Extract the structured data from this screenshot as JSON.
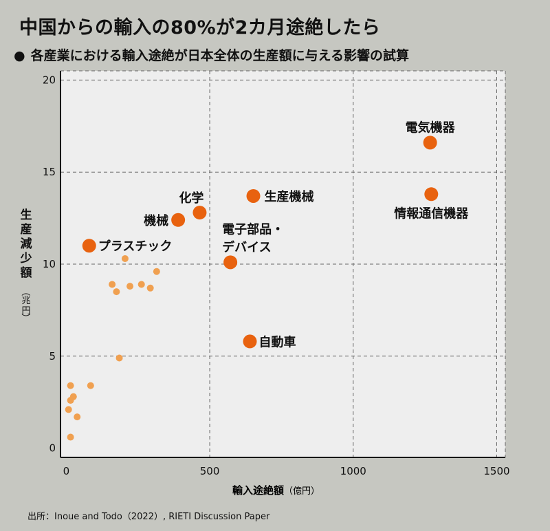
{
  "header": {
    "title": "中国からの輸入の80%が2カ月途絶したら",
    "bullet": "●",
    "subtitle": "各産業における輸入途絶が日本全体の生産額に与える影響の試算"
  },
  "footer": {
    "source": "出所：Inoue and Todo（2022）, RIETI Discussion Paper"
  },
  "colors": {
    "background": "#c6c7c1",
    "plot_background": "#eeeeee",
    "point_major": "#e8620f",
    "point_minor": "#f0a050"
  },
  "chart_data": {
    "type": "scatter",
    "xlabel": "輸入途絶額",
    "xlabel_unit": "（億円）",
    "ylabel": "生産減少額",
    "ylabel_unit": "（兆円）",
    "xlim": [
      -20,
      1530
    ],
    "ylim": [
      -0.5,
      20.5
    ],
    "xticks": [
      0,
      500,
      1000,
      1500
    ],
    "yticks": [
      0,
      5,
      10,
      15,
      20
    ],
    "grid": true,
    "labeled_points": [
      {
        "label": "電気機器",
        "x": 1268,
        "y": 16.6
      },
      {
        "label": "情報通信機器",
        "x": 1272,
        "y": 13.8
      },
      {
        "label": "生産機械",
        "x": 652,
        "y": 13.7
      },
      {
        "label": "化学",
        "x": 465,
        "y": 12.8
      },
      {
        "label": "機械",
        "x": 390,
        "y": 12.4
      },
      {
        "label": "プラスチック",
        "x": 80,
        "y": 11.0
      },
      {
        "label": "電子部品・",
        "label2": "デバイス",
        "x": 572,
        "y": 10.1
      },
      {
        "label": "自動車",
        "x": 640,
        "y": 5.8
      }
    ],
    "other_points": [
      {
        "x": 205,
        "y": 10.3
      },
      {
        "x": 315,
        "y": 9.6
      },
      {
        "x": 160,
        "y": 8.9
      },
      {
        "x": 262,
        "y": 8.9
      },
      {
        "x": 222,
        "y": 8.8
      },
      {
        "x": 293,
        "y": 8.7
      },
      {
        "x": 175,
        "y": 8.5
      },
      {
        "x": 185,
        "y": 4.9
      },
      {
        "x": 15,
        "y": 3.4
      },
      {
        "x": 85,
        "y": 3.4
      },
      {
        "x": 25,
        "y": 2.8
      },
      {
        "x": 15,
        "y": 2.6
      },
      {
        "x": 8,
        "y": 2.1
      },
      {
        "x": 38,
        "y": 1.7
      },
      {
        "x": 15,
        "y": 0.6
      }
    ]
  }
}
